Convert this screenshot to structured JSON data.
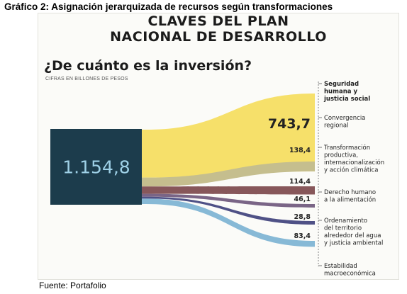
{
  "caption": "Gráfico 2: Asignación jerarquizada de recursos según transformaciones",
  "source": "Fuente: Portafolio",
  "chart_data": {
    "type": "sankey",
    "title_line1": "CLAVES DEL PLAN",
    "title_line2": "NACIONAL DE DESARROLLO",
    "subtitle": "¿De cuánto es la inversión?",
    "units": "CIFRAS EN BILLONES DE PESOS",
    "total": {
      "label": "1.154,8",
      "value": 1154.8
    },
    "flows": [
      {
        "label": "Seguridad humana y justicia social",
        "lines": [
          "Seguridad",
          "humana y",
          "justicia social"
        ],
        "value": 743.7,
        "value_label": "743,7",
        "color": "#f6e06a"
      },
      {
        "label": "Convergencia regional",
        "lines": [
          "Convergencia",
          "regional"
        ],
        "value": 138.4,
        "value_label": "138,4",
        "color": "#c5be8e"
      },
      {
        "label": "Transformación productiva, internacionalización y acción climática",
        "lines": [
          "Transformación",
          "productiva,",
          "internacionalización",
          "y acción climática"
        ],
        "value": 114.4,
        "value_label": "114,4",
        "color": "#87575a"
      },
      {
        "label": "Derecho humano a la alimentación",
        "lines": [
          "Derecho humano",
          "a la alimentación"
        ],
        "value": 46.1,
        "value_label": "46,1",
        "color": "#7a6586"
      },
      {
        "label": "Ordenamiento del territorio alrededor del agua y justicia ambiental",
        "lines": [
          "Ordenamiento",
          "del territorio",
          "alrededor del agua",
          "y justicia ambiental"
        ],
        "value": 28.8,
        "value_label": "28,8",
        "color": "#4f5186"
      },
      {
        "label": "Estabilidad macroeconómica",
        "lines": [
          "Estabilidad",
          "macroeconómica"
        ],
        "value": 83.4,
        "value_label": "83,4",
        "color": "#87b9d6"
      }
    ],
    "colors": {
      "source_box": "#1c3c4c",
      "total_text": "#9ed0e6"
    }
  }
}
